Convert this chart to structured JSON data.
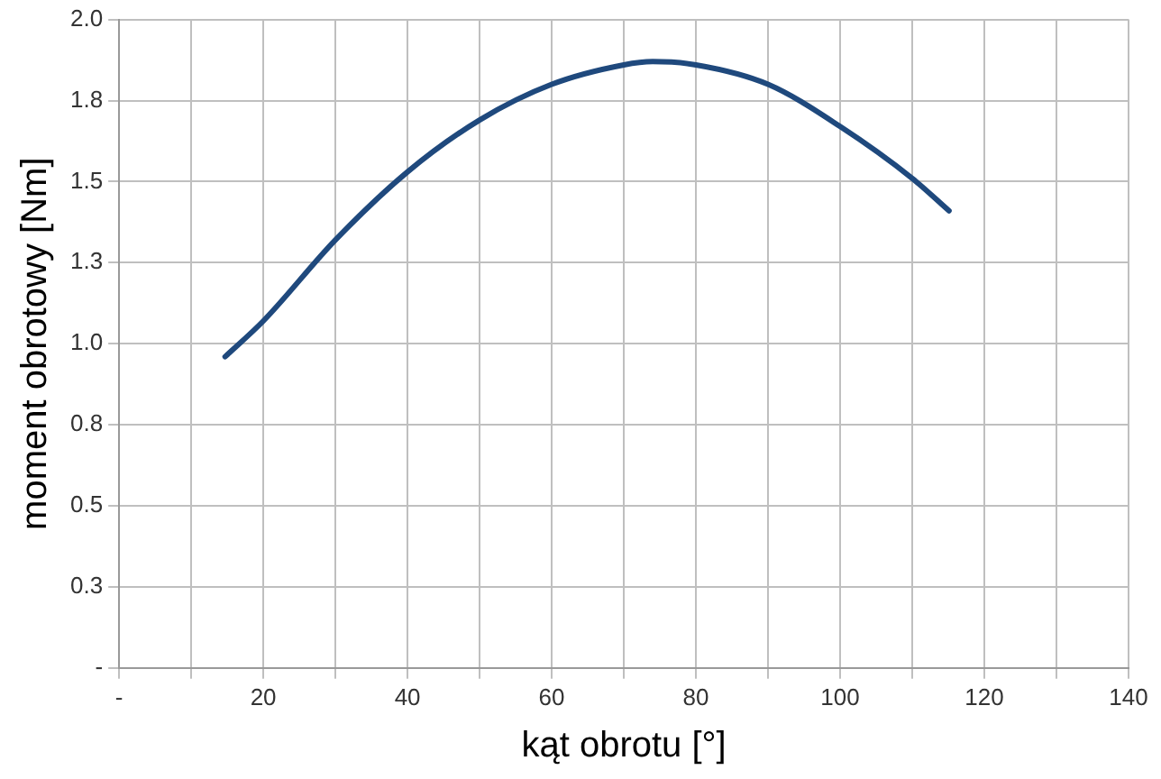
{
  "chart_data": {
    "type": "line",
    "xlabel": "kąt obrotu [°]",
    "ylabel": "moment obrotowy [Nm]",
    "x": [
      14.7,
      20,
      30,
      40,
      50,
      60,
      70,
      74,
      80,
      90,
      100,
      110,
      115.1
    ],
    "series": [
      {
        "color": "#1f497d",
        "values": [
          0.96,
          1.07,
          1.32,
          1.53,
          1.69,
          1.8,
          1.86,
          1.87,
          1.86,
          1.8,
          1.67,
          1.51,
          1.41
        ]
      }
    ],
    "xlim": [
      0,
      140
    ],
    "xticks": [
      {
        "value": 0,
        "label": "-"
      },
      {
        "value": 10,
        "label": null
      },
      20,
      {
        "value": 30,
        "label": null
      },
      40,
      {
        "value": 50,
        "label": null
      },
      60,
      {
        "value": 70,
        "label": null
      },
      80,
      {
        "value": 90,
        "label": null
      },
      100,
      {
        "value": 110,
        "label": null
      },
      120,
      {
        "value": 130,
        "label": null
      },
      140
    ],
    "ylim": [
      0,
      2
    ],
    "yticks": [
      {
        "value": 0,
        "label": "-"
      },
      {
        "value": 0.25,
        "label": "0.3"
      },
      {
        "value": 0.5,
        "label": "0.5"
      },
      {
        "value": 0.75,
        "label": "0.8"
      },
      {
        "value": 1,
        "label": "1.0"
      },
      {
        "value": 1.25,
        "label": "1.3"
      },
      {
        "value": 1.5,
        "label": "1.5"
      },
      {
        "value": 1.75,
        "label": "1.8"
      },
      {
        "value": 2,
        "label": "2.0"
      }
    ],
    "grid": true,
    "marker": "none",
    "line_style": "solid",
    "legend": false
  }
}
